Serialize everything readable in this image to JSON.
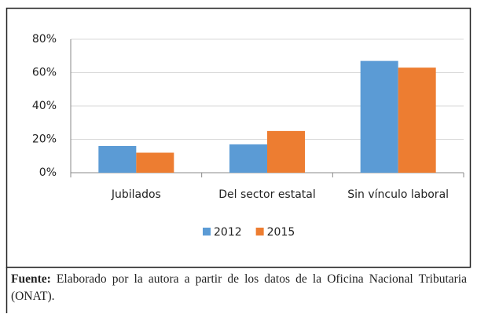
{
  "chart_data": {
    "type": "bar",
    "categories": [
      "Jubilados",
      "Del sector estatal",
      "Sin vínculo laboral"
    ],
    "series": [
      {
        "name": "2012",
        "color": "#5b9bd5",
        "values": [
          16,
          17,
          67
        ]
      },
      {
        "name": "2015",
        "color": "#ed7d31",
        "values": [
          12,
          25,
          63
        ]
      }
    ],
    "ylim": [
      0,
      80
    ],
    "yticks": [
      {
        "value": 0,
        "label": "0%"
      },
      {
        "value": 20,
        "label": "20%"
      },
      {
        "value": 40,
        "label": "40%"
      },
      {
        "value": 60,
        "label": "60%"
      },
      {
        "value": 80,
        "label": "80%"
      }
    ],
    "grid": true,
    "legend": "bottom"
  },
  "caption": {
    "label": "Fuente:",
    "text": "Elaborado por la autora a partir de los datos de la Oficina Nacional Tributaria (ONAT)."
  }
}
